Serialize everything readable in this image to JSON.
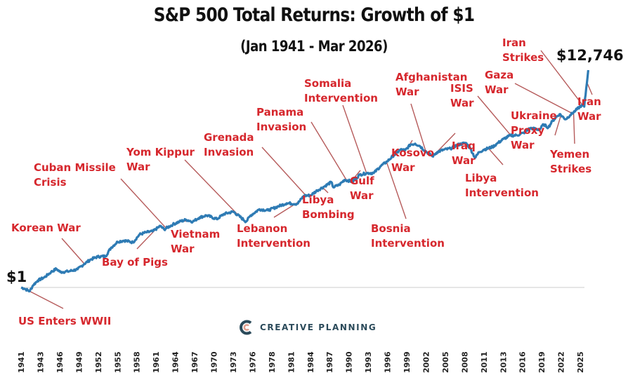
{
  "chart_data": {
    "type": "line",
    "title": "S&P 500 Total Returns: Growth of $1",
    "subtitle": "(Jan 1941 - Mar 2026)",
    "xlabel": "",
    "ylabel": "",
    "yscale": "log",
    "xlim": [
      1941,
      2026.2
    ],
    "ylim": [
      1,
      12746
    ],
    "grid": false,
    "start_label": "$1",
    "end_label": "$12,746",
    "tick_labels": [
      "1941",
      "1943",
      "1946",
      "1949",
      "1952",
      "1955",
      "1958",
      "1961",
      "1964",
      "1967",
      "1970",
      "1973",
      "1976",
      "1978",
      "1981",
      "1984",
      "1987",
      "1990",
      "1993",
      "1996",
      "1999",
      "2002",
      "2005",
      "2008",
      "2011",
      "2013",
      "2016",
      "2019",
      "2022",
      "2025"
    ],
    "series": [
      {
        "name": "S&P 500 Total Returns",
        "color": "#2e7bb4",
        "x": [
          1941.0,
          1941.5,
          1942.3,
          1942.8,
          1943.5,
          1944.5,
          1945.5,
          1946.3,
          1946.9,
          1948.0,
          1949.5,
          1950.5,
          1951.5,
          1952.5,
          1953.7,
          1954.5,
          1955.5,
          1956.5,
          1957.8,
          1958.8,
          1959.8,
          1960.8,
          1961.9,
          1962.5,
          1963.8,
          1964.8,
          1965.8,
          1966.8,
          1967.8,
          1968.9,
          1970.4,
          1971.5,
          1972.9,
          1974.8,
          1975.5,
          1976.8,
          1978.1,
          1979.5,
          1980.9,
          1982.5,
          1983.5,
          1984.5,
          1985.5,
          1986.5,
          1987.6,
          1987.9,
          1988.8,
          1989.6,
          1990.8,
          1991.9,
          1993.0,
          1994.0,
          1995.0,
          1996.0,
          1997.0,
          1998.0,
          1998.7,
          1999.5,
          2000.2,
          2000.9,
          2001.7,
          2002.8,
          2003.5,
          2004.5,
          2005.5,
          2006.5,
          2007.8,
          2008.5,
          2009.2,
          2009.8,
          2010.5,
          2011.8,
          2012.5,
          2013.5,
          2014.5,
          2015.5,
          2016.5,
          2017.5,
          2018.9,
          2019.5,
          2020.2,
          2020.8,
          2021.5,
          2021.9,
          2022.8,
          2023.5,
          2024.3,
          2025.2,
          2025.6,
          2026.2
        ],
        "values": [
          1.0,
          0.95,
          0.85,
          1.1,
          1.35,
          1.55,
          1.95,
          2.25,
          1.95,
          2.0,
          2.2,
          2.8,
          3.4,
          3.8,
          3.9,
          5.6,
          7.3,
          7.7,
          7.1,
          10.0,
          11.0,
          11.5,
          14.5,
          12.5,
          15.5,
          17.5,
          19.0,
          17.5,
          21.0,
          23.0,
          19.5,
          24.5,
          27.0,
          17.5,
          23.0,
          30.0,
          28.5,
          33.5,
          39.0,
          38.0,
          54.0,
          55.0,
          68.0,
          80.0,
          98.0,
          78.0,
          87.0,
          108.0,
          100.0,
          135.0,
          145.0,
          145.0,
          195.0,
          240.0,
          315.0,
          400.0,
          390.0,
          500.0,
          520.0,
          470.0,
          380.0,
          300.0,
          360.0,
          400.0,
          420.0,
          490.0,
          540.0,
          420.0,
          280.0,
          360.0,
          400.0,
          450.0,
          520.0,
          640.0,
          740.0,
          750.0,
          830.0,
          1020.0,
          960.0,
          1200.0,
          1050.0,
          1380.0,
          1700.0,
          1880.0,
          1500.0,
          1800.0,
          2200.0,
          2750.0,
          2600.0,
          12746.0
        ]
      }
    ],
    "annotations": [
      {
        "label": [
          "Korean War"
        ],
        "year": 1950.5
      },
      {
        "label": [
          "Cuban Missile",
          "Crisis"
        ],
        "year": 1962.8
      },
      {
        "label": [
          "Yom Kippur",
          "War"
        ],
        "year": 1973.8
      },
      {
        "label": [
          "Grenada",
          "Invasion"
        ],
        "year": 1983.8
      },
      {
        "label": [
          "Panama",
          "Invasion"
        ],
        "year": 1989.9
      },
      {
        "label": [
          "Somalia",
          "Intervention"
        ],
        "year": 1992.9
      },
      {
        "label": [
          "Afghanistan",
          "War"
        ],
        "year": 2001.8
      },
      {
        "label": [
          "ISIS",
          "War"
        ],
        "year": 2014.6
      },
      {
        "label": [
          "Gaza",
          "War"
        ],
        "year": 2023.8
      },
      {
        "label": [
          "Iran",
          "Strikes"
        ],
        "year": 2025.5
      },
      {
        "label": [
          "US Enters WWII"
        ],
        "year": 1941.9
      },
      {
        "label": [
          "Bay of Pigs"
        ],
        "year": 1961.3
      },
      {
        "label": [
          "Vietnam",
          "War"
        ],
        "year": 1964.8
      },
      {
        "label": [
          "Lebanon",
          "Intervention"
        ],
        "year": 1982.8
      },
      {
        "label": [
          "Libya",
          "Bombing"
        ],
        "year": 1986.3
      },
      {
        "label": [
          "Gulf",
          "War"
        ],
        "year": 1990.6
      },
      {
        "label": [
          "Bosnia",
          "Intervention"
        ],
        "year": 1995.9
      },
      {
        "label": [
          "Kosovo",
          "War"
        ],
        "year": 1999.2
      },
      {
        "label": [
          "Iraq",
          "War"
        ],
        "year": 2003.2
      },
      {
        "label": [
          "Libya",
          "Intervention"
        ],
        "year": 2011.2
      },
      {
        "label": [
          "Ukraine",
          "Proxy",
          "War"
        ],
        "year": 2022.1
      },
      {
        "label": [
          "Yemen",
          "Strikes"
        ],
        "year": 2024.0
      },
      {
        "label": [
          "Iran",
          "War"
        ],
        "year": 2026.0
      }
    ]
  },
  "branding": {
    "logo_text": "CREATIVE PLANNING",
    "colors": {
      "teal": "#2b4a5a",
      "accent": "#e1a08f"
    }
  },
  "colors": {
    "line": "#2e7bb4",
    "annotation_text": "#d6272d",
    "leader": "#b65b5b",
    "baseline": "#dddddd"
  }
}
